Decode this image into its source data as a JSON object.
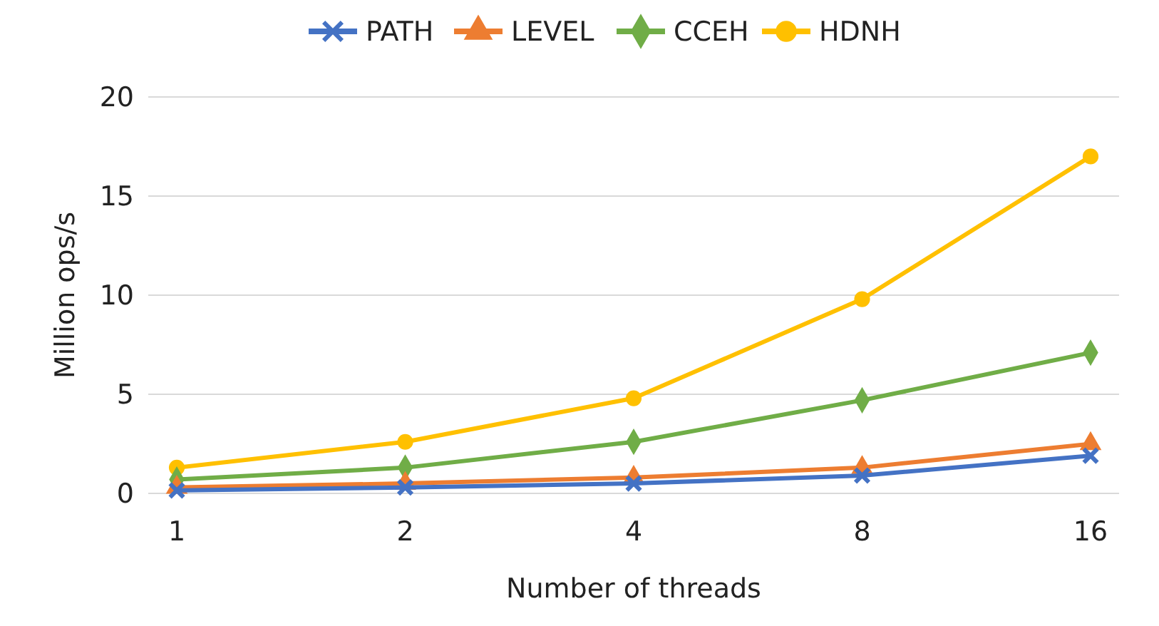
{
  "chart_data": {
    "type": "line",
    "xlabel": "Number of threads",
    "ylabel": "Million ops/s",
    "categories": [
      "1",
      "2",
      "4",
      "8",
      "16"
    ],
    "ylim": [
      0,
      20
    ],
    "yticks": [
      0,
      5,
      10,
      15,
      20
    ],
    "grid": "y",
    "legend": "top",
    "line_style": "solid",
    "series": [
      {
        "name": "PATH",
        "color": "#4472c4",
        "marker": "cross",
        "values": [
          0.15,
          0.3,
          0.5,
          0.9,
          1.9
        ]
      },
      {
        "name": "LEVEL",
        "color": "#ed7d31",
        "marker": "triangle",
        "values": [
          0.3,
          0.5,
          0.8,
          1.3,
          2.5
        ]
      },
      {
        "name": "CCEH",
        "color": "#70ad47",
        "marker": "diamond",
        "values": [
          0.7,
          1.3,
          2.6,
          4.7,
          7.1
        ]
      },
      {
        "name": "HDNH",
        "color": "#ffc000",
        "marker": "circle",
        "values": [
          1.3,
          2.6,
          4.8,
          9.8,
          17
        ]
      }
    ]
  }
}
